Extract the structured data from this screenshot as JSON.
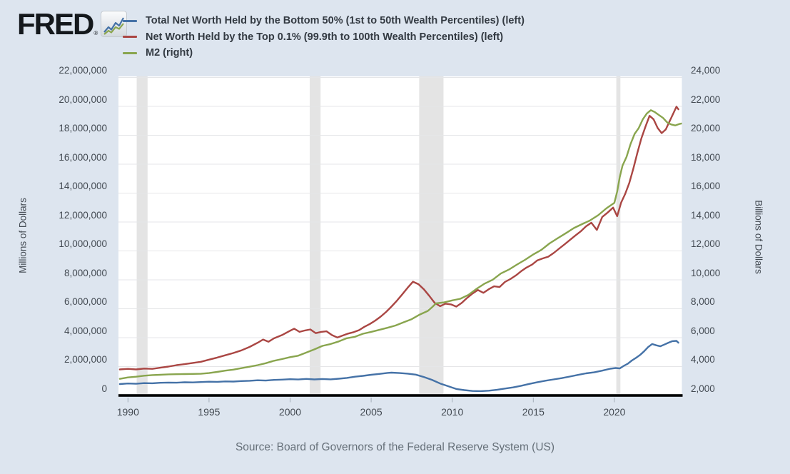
{
  "logo": {
    "text": "FRED",
    "registered_mark": "®"
  },
  "source": "Source: Board of Governors of the Federal Reserve System (US)",
  "colors": {
    "background": "#dde5ef",
    "plot_background": "#ffffff",
    "gridline": "#e5e6e8",
    "recession_band": "#e4e4e4",
    "axis_line": "#000000",
    "tick_mark": "#a3adb8"
  },
  "chart_data": {
    "type": "line",
    "title": "",
    "legend_position": "top",
    "grid": true,
    "x_axis": {
      "ticks": [
        1990,
        1995,
        2000,
        2005,
        2010,
        2015,
        2020
      ],
      "range": [
        1989.42,
        2024.17
      ]
    },
    "y_axis_left": {
      "title": "Millions of Dollars",
      "range": [
        0,
        22000000
      ],
      "ticks": [
        0,
        2000000,
        4000000,
        6000000,
        8000000,
        10000000,
        12000000,
        14000000,
        16000000,
        18000000,
        20000000,
        22000000
      ]
    },
    "y_axis_right": {
      "title": "Billions of Dollars",
      "range": [
        2000,
        24000
      ],
      "ticks": [
        2000,
        4000,
        6000,
        8000,
        10000,
        12000,
        14000,
        16000,
        18000,
        20000,
        22000,
        24000
      ]
    },
    "recession_bands": [
      [
        1990.54,
        1991.21
      ],
      [
        2001.21,
        2001.88
      ],
      [
        2007.96,
        2009.46
      ],
      [
        2020.12,
        2020.37
      ]
    ],
    "series": [
      {
        "name": "Total Net Worth Held by the Bottom 50% (1st to 50th Wealth Percentiles) (left)",
        "color": "#4572a7",
        "axis": "left",
        "units": "Millions of Dollars",
        "points": [
          [
            1989.5,
            790000
          ],
          [
            1990,
            830000
          ],
          [
            1990.5,
            810000
          ],
          [
            1991,
            855000
          ],
          [
            1991.5,
            845000
          ],
          [
            1992,
            880000
          ],
          [
            1992.5,
            895000
          ],
          [
            1993,
            885000
          ],
          [
            1993.5,
            915000
          ],
          [
            1994,
            905000
          ],
          [
            1994.5,
            930000
          ],
          [
            1995,
            955000
          ],
          [
            1995.5,
            945000
          ],
          [
            1996,
            975000
          ],
          [
            1996.5,
            965000
          ],
          [
            1997,
            1000000
          ],
          [
            1997.5,
            1015000
          ],
          [
            1998,
            1050000
          ],
          [
            1998.5,
            1030000
          ],
          [
            1999,
            1075000
          ],
          [
            1999.5,
            1095000
          ],
          [
            2000,
            1125000
          ],
          [
            2000.5,
            1105000
          ],
          [
            2001,
            1145000
          ],
          [
            2001.5,
            1110000
          ],
          [
            2002,
            1140000
          ],
          [
            2002.5,
            1115000
          ],
          [
            2003,
            1160000
          ],
          [
            2003.5,
            1215000
          ],
          [
            2004,
            1300000
          ],
          [
            2004.5,
            1360000
          ],
          [
            2005,
            1430000
          ],
          [
            2005.5,
            1490000
          ],
          [
            2006,
            1560000
          ],
          [
            2006.25,
            1580000
          ],
          [
            2006.75,
            1550000
          ],
          [
            2007.25,
            1510000
          ],
          [
            2007.75,
            1440000
          ],
          [
            2008.25,
            1280000
          ],
          [
            2008.75,
            1080000
          ],
          [
            2009.25,
            830000
          ],
          [
            2009.75,
            640000
          ],
          [
            2010.25,
            450000
          ],
          [
            2010.75,
            370000
          ],
          [
            2011.25,
            310000
          ],
          [
            2011.75,
            300000
          ],
          [
            2012.25,
            330000
          ],
          [
            2012.75,
            390000
          ],
          [
            2013.25,
            480000
          ],
          [
            2013.75,
            560000
          ],
          [
            2014.25,
            670000
          ],
          [
            2014.75,
            800000
          ],
          [
            2015.25,
            920000
          ],
          [
            2015.75,
            1020000
          ],
          [
            2016.25,
            1110000
          ],
          [
            2016.75,
            1200000
          ],
          [
            2017.25,
            1310000
          ],
          [
            2017.75,
            1420000
          ],
          [
            2018.25,
            1530000
          ],
          [
            2018.75,
            1600000
          ],
          [
            2019.25,
            1720000
          ],
          [
            2019.75,
            1850000
          ],
          [
            2020.08,
            1900000
          ],
          [
            2020.33,
            1870000
          ],
          [
            2020.58,
            2050000
          ],
          [
            2020.83,
            2200000
          ],
          [
            2021.08,
            2420000
          ],
          [
            2021.33,
            2600000
          ],
          [
            2021.58,
            2800000
          ],
          [
            2021.83,
            3050000
          ],
          [
            2022.08,
            3350000
          ],
          [
            2022.33,
            3560000
          ],
          [
            2022.58,
            3470000
          ],
          [
            2022.83,
            3400000
          ],
          [
            2023.08,
            3520000
          ],
          [
            2023.33,
            3650000
          ],
          [
            2023.58,
            3760000
          ],
          [
            2023.83,
            3780000
          ],
          [
            2023.95,
            3650000
          ]
        ]
      },
      {
        "name": "Net Worth Held by the Top 0.1% (99.9th to 100th Wealth Percentiles) (left)",
        "color": "#aa4643",
        "axis": "left",
        "units": "Millions of Dollars",
        "points": [
          [
            1989.5,
            1800000
          ],
          [
            1990,
            1840000
          ],
          [
            1990.5,
            1800000
          ],
          [
            1991,
            1860000
          ],
          [
            1991.5,
            1840000
          ],
          [
            1992,
            1920000
          ],
          [
            1992.5,
            2000000
          ],
          [
            1993,
            2100000
          ],
          [
            1993.5,
            2170000
          ],
          [
            1994,
            2250000
          ],
          [
            1994.5,
            2330000
          ],
          [
            1995,
            2480000
          ],
          [
            1995.5,
            2620000
          ],
          [
            1996,
            2780000
          ],
          [
            1996.5,
            2940000
          ],
          [
            1997,
            3120000
          ],
          [
            1997.5,
            3360000
          ],
          [
            1998,
            3650000
          ],
          [
            1998.33,
            3870000
          ],
          [
            1998.67,
            3720000
          ],
          [
            1999,
            3950000
          ],
          [
            1999.5,
            4180000
          ],
          [
            2000,
            4480000
          ],
          [
            2000.25,
            4620000
          ],
          [
            2000.58,
            4400000
          ],
          [
            2000.92,
            4500000
          ],
          [
            2001.25,
            4570000
          ],
          [
            2001.58,
            4310000
          ],
          [
            2001.92,
            4400000
          ],
          [
            2002.25,
            4440000
          ],
          [
            2002.58,
            4180000
          ],
          [
            2002.92,
            4010000
          ],
          [
            2003.25,
            4150000
          ],
          [
            2003.58,
            4280000
          ],
          [
            2003.92,
            4380000
          ],
          [
            2004.25,
            4520000
          ],
          [
            2004.58,
            4750000
          ],
          [
            2004.92,
            4950000
          ],
          [
            2005.25,
            5180000
          ],
          [
            2005.58,
            5450000
          ],
          [
            2005.92,
            5780000
          ],
          [
            2006.25,
            6150000
          ],
          [
            2006.58,
            6550000
          ],
          [
            2006.92,
            7000000
          ],
          [
            2007.25,
            7450000
          ],
          [
            2007.58,
            7870000
          ],
          [
            2007.92,
            7700000
          ],
          [
            2008.25,
            7350000
          ],
          [
            2008.58,
            6900000
          ],
          [
            2008.92,
            6400000
          ],
          [
            2009.25,
            6180000
          ],
          [
            2009.58,
            6350000
          ],
          [
            2009.92,
            6300000
          ],
          [
            2010.25,
            6150000
          ],
          [
            2010.58,
            6400000
          ],
          [
            2010.92,
            6750000
          ],
          [
            2011.25,
            7050000
          ],
          [
            2011.58,
            7300000
          ],
          [
            2011.92,
            7100000
          ],
          [
            2012.25,
            7350000
          ],
          [
            2012.58,
            7550000
          ],
          [
            2012.92,
            7500000
          ],
          [
            2013.25,
            7850000
          ],
          [
            2013.58,
            8050000
          ],
          [
            2013.92,
            8300000
          ],
          [
            2014.25,
            8600000
          ],
          [
            2014.58,
            8850000
          ],
          [
            2014.92,
            9050000
          ],
          [
            2015.25,
            9350000
          ],
          [
            2015.58,
            9480000
          ],
          [
            2015.92,
            9600000
          ],
          [
            2016.25,
            9850000
          ],
          [
            2016.58,
            10150000
          ],
          [
            2016.92,
            10450000
          ],
          [
            2017.25,
            10750000
          ],
          [
            2017.58,
            11050000
          ],
          [
            2017.92,
            11350000
          ],
          [
            2018.25,
            11700000
          ],
          [
            2018.58,
            11950000
          ],
          [
            2018.92,
            11450000
          ],
          [
            2019.25,
            12350000
          ],
          [
            2019.58,
            12650000
          ],
          [
            2019.92,
            13000000
          ],
          [
            2020.17,
            12400000
          ],
          [
            2020.42,
            13350000
          ],
          [
            2020.67,
            13950000
          ],
          [
            2020.92,
            14700000
          ],
          [
            2021.17,
            15700000
          ],
          [
            2021.42,
            16800000
          ],
          [
            2021.67,
            17800000
          ],
          [
            2021.92,
            18600000
          ],
          [
            2022.17,
            19350000
          ],
          [
            2022.42,
            19100000
          ],
          [
            2022.67,
            18500000
          ],
          [
            2022.92,
            18150000
          ],
          [
            2023.17,
            18400000
          ],
          [
            2023.42,
            19000000
          ],
          [
            2023.67,
            19600000
          ],
          [
            2023.83,
            19980000
          ],
          [
            2023.95,
            19800000
          ]
        ]
      },
      {
        "name": "M2 (right)",
        "color": "#89a54e",
        "axis": "right",
        "units": "Billions of Dollars",
        "points": [
          [
            1989.5,
            3150
          ],
          [
            1990,
            3250
          ],
          [
            1990.5,
            3300
          ],
          [
            1991,
            3370
          ],
          [
            1991.5,
            3410
          ],
          [
            1992,
            3430
          ],
          [
            1992.5,
            3460
          ],
          [
            1993,
            3470
          ],
          [
            1993.5,
            3480
          ],
          [
            1994,
            3490
          ],
          [
            1994.5,
            3500
          ],
          [
            1995,
            3550
          ],
          [
            1995.5,
            3630
          ],
          [
            1996,
            3720
          ],
          [
            1996.5,
            3790
          ],
          [
            1997,
            3890
          ],
          [
            1997.5,
            3990
          ],
          [
            1998,
            4100
          ],
          [
            1998.5,
            4230
          ],
          [
            1999,
            4400
          ],
          [
            1999.5,
            4520
          ],
          [
            2000,
            4650
          ],
          [
            2000.5,
            4750
          ],
          [
            2001,
            4970
          ],
          [
            2001.5,
            5190
          ],
          [
            2002,
            5430
          ],
          [
            2002.5,
            5560
          ],
          [
            2003,
            5740
          ],
          [
            2003.5,
            5960
          ],
          [
            2004,
            6060
          ],
          [
            2004.5,
            6270
          ],
          [
            2005,
            6400
          ],
          [
            2005.5,
            6540
          ],
          [
            2006,
            6680
          ],
          [
            2006.5,
            6840
          ],
          [
            2007,
            7060
          ],
          [
            2007.5,
            7280
          ],
          [
            2008,
            7600
          ],
          [
            2008.5,
            7850
          ],
          [
            2008.75,
            8100
          ],
          [
            2009,
            8370
          ],
          [
            2009.5,
            8440
          ],
          [
            2010,
            8580
          ],
          [
            2010.5,
            8690
          ],
          [
            2011,
            8960
          ],
          [
            2011.5,
            9380
          ],
          [
            2012,
            9740
          ],
          [
            2012.5,
            10010
          ],
          [
            2013,
            10440
          ],
          [
            2013.5,
            10710
          ],
          [
            2014,
            11060
          ],
          [
            2014.5,
            11390
          ],
          [
            2015,
            11760
          ],
          [
            2015.5,
            12080
          ],
          [
            2016,
            12520
          ],
          [
            2016.5,
            12880
          ],
          [
            2017,
            13220
          ],
          [
            2017.5,
            13580
          ],
          [
            2018,
            13850
          ],
          [
            2018.5,
            14110
          ],
          [
            2019,
            14470
          ],
          [
            2019.5,
            14940
          ],
          [
            2020,
            15330
          ],
          [
            2020.17,
            16100
          ],
          [
            2020.33,
            17100
          ],
          [
            2020.5,
            17900
          ],
          [
            2020.75,
            18500
          ],
          [
            2021,
            19400
          ],
          [
            2021.25,
            20100
          ],
          [
            2021.5,
            20500
          ],
          [
            2021.75,
            21100
          ],
          [
            2022,
            21500
          ],
          [
            2022.25,
            21740
          ],
          [
            2022.5,
            21600
          ],
          [
            2022.75,
            21400
          ],
          [
            2023,
            21200
          ],
          [
            2023.25,
            20900
          ],
          [
            2023.5,
            20750
          ],
          [
            2023.75,
            20680
          ],
          [
            2024,
            20780
          ],
          [
            2024.17,
            20820
          ]
        ]
      }
    ]
  }
}
